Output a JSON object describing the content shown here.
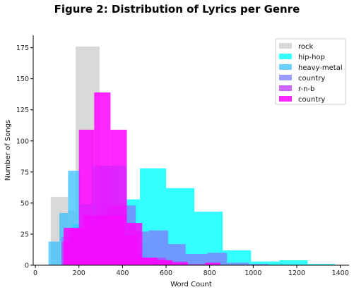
{
  "chart_data": {
    "type": "histogram",
    "title": "Figure 2: Distribution of Lyrics per Genre",
    "xlabel": "Word Count",
    "ylabel": "Number of Songs",
    "xlim": [
      -10,
      1440
    ],
    "ylim": [
      0,
      185
    ],
    "xticks": [
      0,
      200,
      400,
      600,
      800,
      1000,
      1200,
      1400
    ],
    "yticks": [
      0,
      25,
      50,
      75,
      100,
      125,
      150,
      175
    ],
    "legend_position": "top-right",
    "spines": "left-bottom only",
    "series": [
      {
        "name": "rock",
        "color": "#d9d9d9",
        "opacity": 1,
        "bins": [
          [
            70,
            150,
            55
          ],
          [
            150,
            185,
            44
          ],
          [
            185,
            295,
            176
          ],
          [
            295,
            400,
            77
          ],
          [
            400,
            470,
            49
          ],
          [
            470,
            510,
            18
          ]
        ]
      },
      {
        "name": "hip-hop",
        "color": "#00ffff",
        "opacity": 0.8,
        "bins": [
          [
            120,
            170,
            6
          ],
          [
            170,
            200,
            33
          ],
          [
            200,
            290,
            49
          ],
          [
            290,
            420,
            80
          ],
          [
            420,
            480,
            53
          ],
          [
            480,
            600,
            78
          ],
          [
            600,
            730,
            62
          ],
          [
            730,
            860,
            43
          ],
          [
            860,
            990,
            12
          ],
          [
            990,
            1120,
            3
          ],
          [
            1120,
            1250,
            4
          ],
          [
            1250,
            1375,
            1
          ]
        ]
      },
      {
        "name": "heavy-metal",
        "color": "#39c0ff",
        "opacity": 0.75,
        "bins": [
          [
            60,
            110,
            19
          ],
          [
            110,
            150,
            42
          ],
          [
            150,
            205,
            76
          ],
          [
            205,
            260,
            49
          ],
          [
            260,
            360,
            80
          ],
          [
            360,
            400,
            39
          ],
          [
            400,
            460,
            24
          ],
          [
            460,
            520,
            8
          ],
          [
            520,
            580,
            5
          ],
          [
            580,
            640,
            2
          ]
        ]
      },
      {
        "name": "country",
        "color": "#8080ff",
        "opacity": 0.8,
        "bins": [
          [
            120,
            150,
            23
          ],
          [
            150,
            330,
            30
          ],
          [
            330,
            460,
            48
          ],
          [
            460,
            520,
            27
          ],
          [
            520,
            610,
            28
          ],
          [
            610,
            690,
            17
          ],
          [
            690,
            790,
            9
          ],
          [
            790,
            880,
            10
          ],
          [
            880,
            980,
            2
          ],
          [
            980,
            1070,
            1
          ]
        ]
      },
      {
        "name": "r-n-b",
        "color": "#bf40ff",
        "opacity": 0.8,
        "bins": [
          [
            120,
            160,
            19
          ],
          [
            160,
            220,
            30
          ],
          [
            220,
            410,
            40
          ],
          [
            410,
            470,
            24
          ],
          [
            470,
            600,
            6
          ],
          [
            600,
            700,
            3
          ],
          [
            700,
            820,
            1
          ]
        ]
      },
      {
        "name": "country",
        "color": "#ff00ff",
        "opacity": 0.85,
        "bins": [
          [
            130,
            200,
            30
          ],
          [
            200,
            270,
            109
          ],
          [
            270,
            345,
            139
          ],
          [
            345,
            420,
            109
          ],
          [
            420,
            490,
            34
          ],
          [
            490,
            560,
            6
          ],
          [
            560,
            630,
            4
          ],
          [
            630,
            700,
            2
          ],
          [
            780,
            850,
            2
          ]
        ]
      }
    ]
  }
}
